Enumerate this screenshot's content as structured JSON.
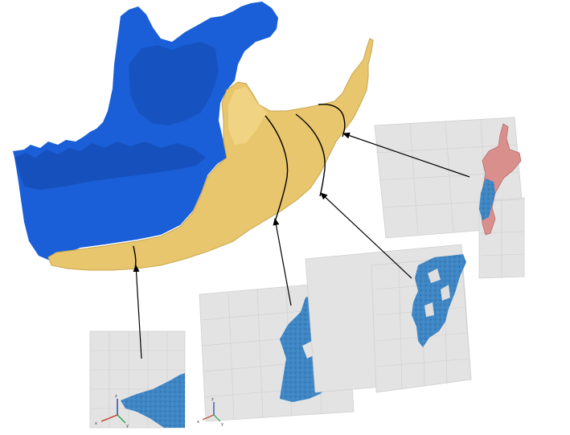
{
  "figure": {
    "description_colors": {
      "mandible_base": "#1a5fd8",
      "implant_region": "#e8c66e",
      "implant_outline": "#c9a64a",
      "slice_blue": "#3f86c4",
      "slice_pink": "#d9908c",
      "panel_gray": "#e3e3e3",
      "arrow": "#000000"
    },
    "icons": [
      "mandible-model-icon",
      "cross-section-panel-icon",
      "axis-triad-icon"
    ],
    "panels": [
      {
        "id": "panel-1",
        "axis_labels": [
          "z",
          "y",
          "x"
        ]
      },
      {
        "id": "panel-2",
        "axis_labels": [
          "z",
          "y",
          "x"
        ]
      },
      {
        "id": "panel-3",
        "axis_labels": []
      },
      {
        "id": "panel-4",
        "axis_labels": []
      }
    ]
  }
}
